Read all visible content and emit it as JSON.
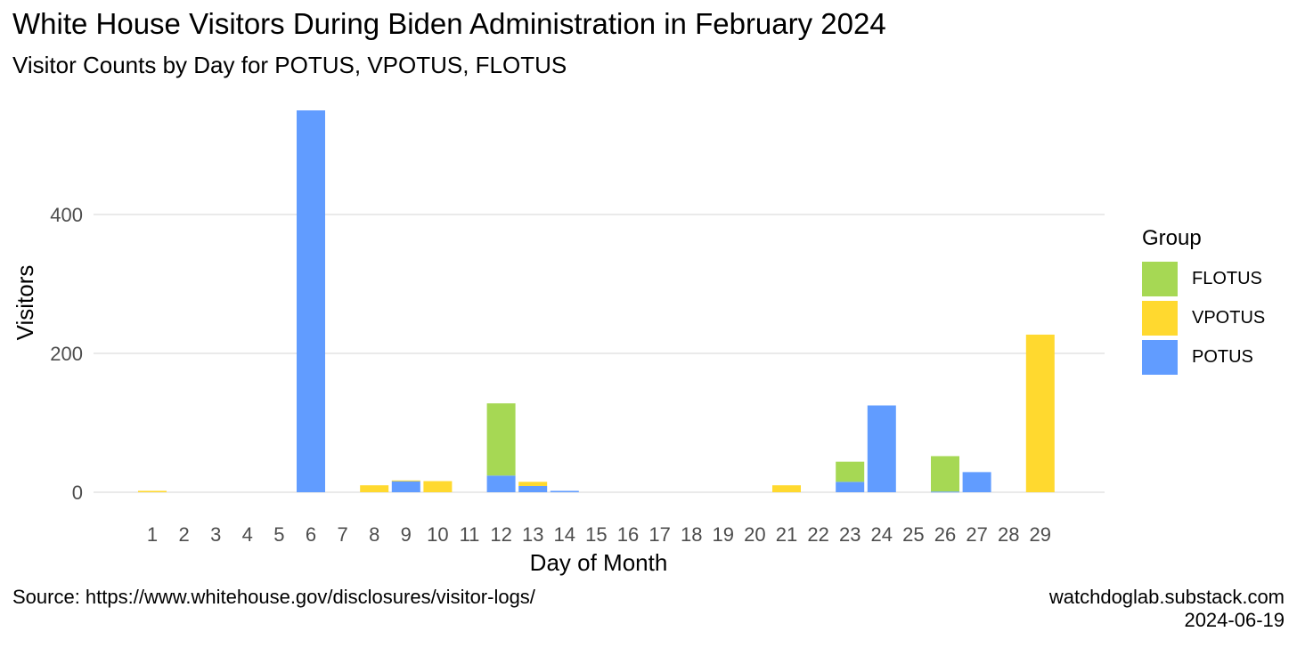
{
  "chart_data": {
    "type": "bar",
    "stacked": true,
    "title": "White House Visitors During Biden Administration in February 2024",
    "subtitle": "Visitor Counts by Day for POTUS, VPOTUS, FLOTUS",
    "xlabel": "Day of Month",
    "ylabel": "Visitors",
    "ylim": [
      0,
      550
    ],
    "yticks": [
      0,
      200,
      400
    ],
    "grid": "horizontal major lines",
    "legend_title": "Group",
    "legend_position": "right",
    "categories": [
      "1",
      "2",
      "3",
      "4",
      "5",
      "6",
      "7",
      "8",
      "9",
      "10",
      "11",
      "12",
      "13",
      "14",
      "15",
      "16",
      "17",
      "18",
      "19",
      "20",
      "21",
      "22",
      "23",
      "24",
      "25",
      "26",
      "27",
      "28",
      "29"
    ],
    "series": [
      {
        "name": "POTUS",
        "color": "#619CFF",
        "values": [
          0,
          0,
          0,
          0,
          0,
          550,
          0,
          0,
          16,
          0,
          0,
          24,
          9,
          2,
          0,
          0,
          0,
          0,
          0,
          0,
          0,
          0,
          15,
          125,
          0,
          1,
          29,
          0,
          0
        ]
      },
      {
        "name": "VPOTUS",
        "color": "#FFD92F",
        "values": [
          2,
          0,
          0,
          0,
          0,
          0,
          0,
          10,
          1,
          16,
          0,
          0,
          6,
          0,
          0,
          0,
          0,
          0,
          0,
          0,
          10,
          0,
          0,
          0,
          0,
          0,
          0,
          0,
          227
        ]
      },
      {
        "name": "FLOTUS",
        "color": "#A6D854",
        "values": [
          0,
          0,
          0,
          0,
          0,
          0,
          0,
          0,
          0,
          0,
          0,
          104,
          0,
          0,
          0,
          0,
          0,
          0,
          0,
          0,
          0,
          0,
          29,
          0,
          0,
          51,
          0,
          0,
          0
        ]
      }
    ],
    "legend_order": [
      "FLOTUS",
      "VPOTUS",
      "POTUS"
    ]
  },
  "caption": {
    "source": "Source: https://www.whitehouse.gov/disclosures/visitor-logs/",
    "site": "watchdoglab.substack.com",
    "date": "2024-06-19"
  }
}
